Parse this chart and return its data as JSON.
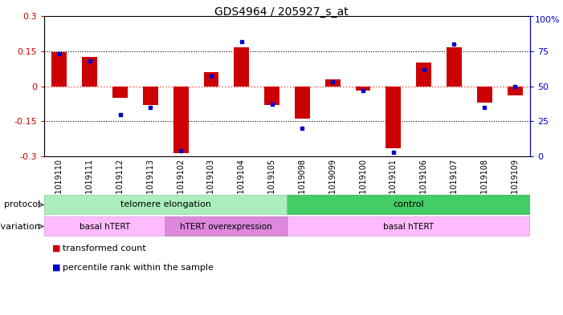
{
  "title": "GDS4964 / 205927_s_at",
  "samples": [
    "GSM1019110",
    "GSM1019111",
    "GSM1019112",
    "GSM1019113",
    "GSM1019102",
    "GSM1019103",
    "GSM1019104",
    "GSM1019105",
    "GSM1019098",
    "GSM1019099",
    "GSM1019100",
    "GSM1019101",
    "GSM1019106",
    "GSM1019107",
    "GSM1019108",
    "GSM1019109"
  ],
  "transformed_count": [
    0.145,
    0.125,
    -0.05,
    -0.08,
    -0.285,
    0.06,
    0.165,
    -0.08,
    -0.14,
    0.03,
    -0.02,
    -0.265,
    0.1,
    0.165,
    -0.07,
    -0.04
  ],
  "percentile_rank": [
    73,
    68,
    30,
    35,
    4,
    57,
    82,
    37,
    20,
    53,
    47,
    3,
    62,
    80,
    35,
    50
  ],
  "ylim": [
    -0.3,
    0.3
  ],
  "y2lim": [
    0,
    100
  ],
  "yticks": [
    -0.3,
    -0.15,
    0.0,
    0.15,
    0.3
  ],
  "y2ticks": [
    0,
    25,
    50,
    75,
    100
  ],
  "hline_dotted": [
    0.15,
    -0.15
  ],
  "bar_color": "#cc0000",
  "scatter_color": "#0000cc",
  "zero_line_color": "#ff4444",
  "protocol_groups": [
    {
      "label": "telomere elongation",
      "start": 0,
      "end": 7,
      "color": "#aaeebb"
    },
    {
      "label": "control",
      "start": 8,
      "end": 15,
      "color": "#44cc66"
    }
  ],
  "genotype_groups": [
    {
      "label": "basal hTERT",
      "start": 0,
      "end": 3,
      "color": "#ffbbff"
    },
    {
      "label": "hTERT overexpression",
      "start": 4,
      "end": 7,
      "color": "#dd88dd"
    },
    {
      "label": "basal hTERT",
      "start": 8,
      "end": 15,
      "color": "#ffbbff"
    }
  ],
  "background_fig": "#ffffff",
  "background_plot": "#ffffff",
  "title_fontsize": 10,
  "tick_fontsize": 7,
  "annotation_fontsize": 8
}
